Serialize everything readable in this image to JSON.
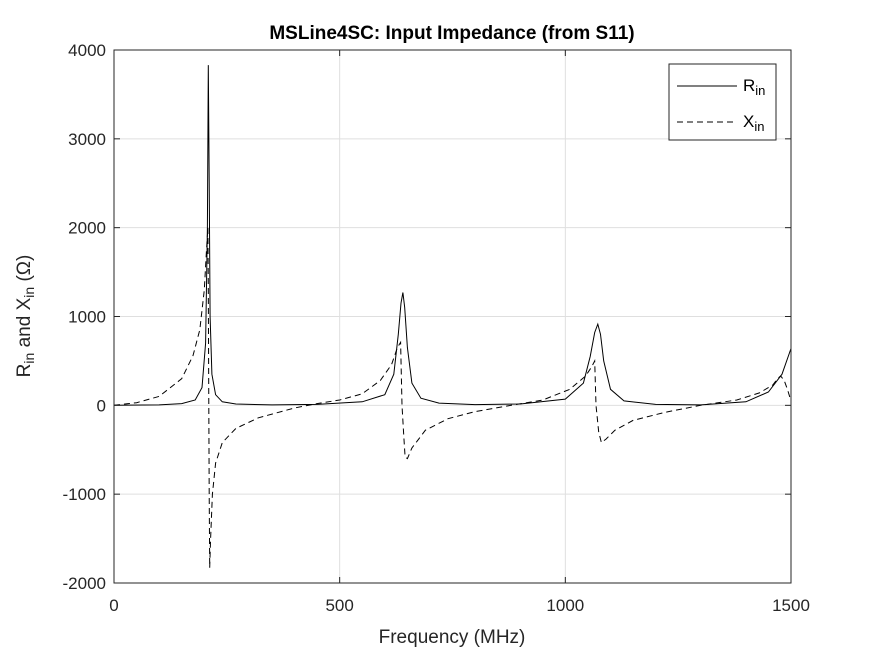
{
  "chart_data": {
    "type": "line",
    "title": "MSLine4SC: Input Impedance (from S11)",
    "xlabel": "Frequency (MHz)",
    "ylabel": {
      "parts": [
        {
          "text": "R",
          "sub": false
        },
        {
          "text": "in",
          "sub": true
        },
        {
          "text": " and X",
          "sub": false
        },
        {
          "text": "in",
          "sub": true
        },
        {
          "text": " (Ω)",
          "sub": false
        }
      ]
    },
    "xlim": [
      0,
      1500
    ],
    "ylim": [
      -2000,
      4000
    ],
    "xticks": [
      "0",
      "500",
      "1000",
      "1500"
    ],
    "yticks": [
      "-2000",
      "-1000",
      "0",
      "1000",
      "2000",
      "3000",
      "4000"
    ],
    "grid": true,
    "legend_position": "top-right",
    "line_color": "#000000",
    "series": [
      {
        "name": "R",
        "name_sub": "in",
        "style": "solid",
        "x": [
          0,
          100,
          150,
          180,
          195,
          203,
          207,
          209,
          211,
          213,
          217,
          225,
          240,
          270,
          350,
          450,
          550,
          600,
          620,
          630,
          636,
          640,
          644,
          650,
          660,
          680,
          720,
          800,
          900,
          1000,
          1040,
          1055,
          1065,
          1072,
          1078,
          1085,
          1100,
          1130,
          1200,
          1300,
          1400,
          1450,
          1480,
          1500
        ],
        "y": [
          0,
          5,
          20,
          60,
          200,
          700,
          2000,
          3830,
          2500,
          1000,
          350,
          120,
          40,
          15,
          5,
          10,
          40,
          120,
          350,
          800,
          1150,
          1270,
          1100,
          650,
          250,
          80,
          25,
          8,
          15,
          70,
          250,
          550,
          820,
          915,
          800,
          500,
          180,
          50,
          10,
          5,
          40,
          150,
          350,
          640
        ]
      },
      {
        "name": "X",
        "name_sub": "in",
        "style": "dashed",
        "x": [
          0,
          50,
          100,
          150,
          175,
          190,
          200,
          205,
          208,
          209,
          210,
          211,
          212,
          214,
          218,
          225,
          240,
          270,
          320,
          400,
          450,
          500,
          550,
          590,
          615,
          628,
          635,
          638,
          642,
          645,
          650,
          660,
          690,
          740,
          800,
          880,
          950,
          1010,
          1045,
          1058,
          1065,
          1068,
          1074,
          1080,
          1090,
          1110,
          1150,
          1220,
          1300,
          1380,
          1430,
          1460,
          1470,
          1477,
          1485,
          1492,
          1500
        ],
        "y": [
          0,
          30,
          100,
          300,
          560,
          850,
          1300,
          1750,
          2000,
          1300,
          0,
          -1000,
          -1830,
          -1500,
          -1000,
          -650,
          -420,
          -260,
          -140,
          -30,
          20,
          60,
          130,
          280,
          460,
          650,
          710,
          0,
          -350,
          -580,
          -600,
          -480,
          -280,
          -150,
          -70,
          0,
          60,
          180,
          330,
          430,
          500,
          0,
          -300,
          -420,
          -380,
          -280,
          -170,
          -80,
          0,
          60,
          140,
          230,
          300,
          330,
          280,
          180,
          50
        ]
      }
    ]
  }
}
